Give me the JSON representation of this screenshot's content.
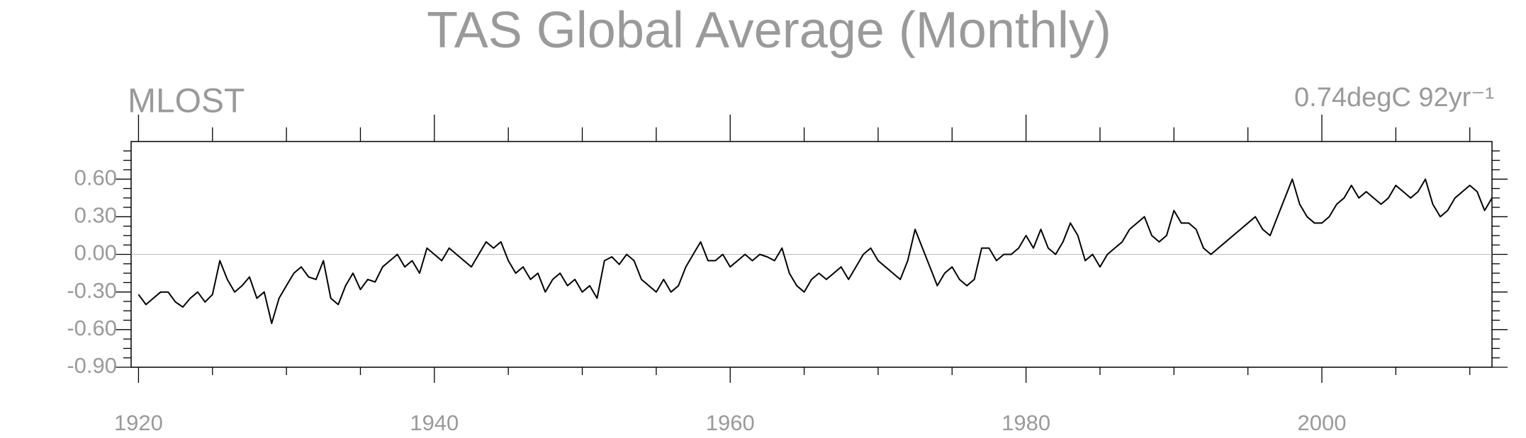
{
  "chart_data": {
    "type": "line",
    "title": "TAS Global Average (Monthly)",
    "subtitle_left": "MLOST",
    "subtitle_right": "0.74degC 92yr⁻¹",
    "x": [
      1920,
      1920.5,
      1921,
      1921.5,
      1922,
      1922.5,
      1923,
      1923.5,
      1924,
      1924.5,
      1925,
      1925.5,
      1926,
      1926.5,
      1927,
      1927.5,
      1928,
      1928.5,
      1929,
      1929.5,
      1930,
      1930.5,
      1931,
      1931.5,
      1932,
      1932.5,
      1933,
      1933.5,
      1934,
      1934.5,
      1935,
      1935.5,
      1936,
      1936.5,
      1937,
      1937.5,
      1938,
      1938.5,
      1939,
      1939.5,
      1940,
      1940.5,
      1941,
      1941.5,
      1942,
      1942.5,
      1943,
      1943.5,
      1944,
      1944.5,
      1945,
      1945.5,
      1946,
      1946.5,
      1947,
      1947.5,
      1948,
      1948.5,
      1949,
      1949.5,
      1950,
      1950.5,
      1951,
      1951.5,
      1952,
      1952.5,
      1953,
      1953.5,
      1954,
      1954.5,
      1955,
      1955.5,
      1956,
      1956.5,
      1957,
      1957.5,
      1958,
      1958.5,
      1959,
      1959.5,
      1960,
      1960.5,
      1961,
      1961.5,
      1962,
      1962.5,
      1963,
      1963.5,
      1964,
      1964.5,
      1965,
      1965.5,
      1966,
      1966.5,
      1967,
      1967.5,
      1968,
      1968.5,
      1969,
      1969.5,
      1970,
      1970.5,
      1971,
      1971.5,
      1972,
      1972.5,
      1973,
      1973.5,
      1974,
      1974.5,
      1975,
      1975.5,
      1976,
      1976.5,
      1977,
      1977.5,
      1978,
      1978.5,
      1979,
      1979.5,
      1980,
      1980.5,
      1981,
      1981.5,
      1982,
      1982.5,
      1983,
      1983.5,
      1984,
      1984.5,
      1985,
      1985.5,
      1986,
      1986.5,
      1987,
      1987.5,
      1988,
      1988.5,
      1989,
      1989.5,
      1990,
      1990.5,
      1991,
      1991.5,
      1992,
      1992.5,
      1993,
      1993.5,
      1994,
      1994.5,
      1995,
      1995.5,
      1996,
      1996.5,
      1997,
      1997.5,
      1998,
      1998.5,
      1999,
      1999.5,
      2000,
      2000.5,
      2001,
      2001.5,
      2002,
      2002.5,
      2003,
      2003.5,
      2004,
      2004.5,
      2005,
      2005.5,
      2006,
      2006.5,
      2007,
      2007.5,
      2008,
      2008.5,
      2009,
      2009.5,
      2010,
      2010.5,
      2011,
      2011.5
    ],
    "series": [
      {
        "color": "#000000",
        "values": [
          -0.32,
          -0.4,
          -0.35,
          -0.3,
          -0.3,
          -0.38,
          -0.42,
          -0.35,
          -0.3,
          -0.38,
          -0.32,
          -0.05,
          -0.2,
          -0.3,
          -0.25,
          -0.18,
          -0.35,
          -0.3,
          -0.55,
          -0.35,
          -0.25,
          -0.15,
          -0.1,
          -0.18,
          -0.2,
          -0.05,
          -0.35,
          -0.4,
          -0.25,
          -0.15,
          -0.28,
          -0.2,
          -0.22,
          -0.1,
          -0.05,
          0.0,
          -0.1,
          -0.05,
          -0.15,
          0.05,
          0.0,
          -0.05,
          0.05,
          0.0,
          -0.05,
          -0.1,
          0.0,
          0.1,
          0.05,
          0.1,
          -0.05,
          -0.15,
          -0.1,
          -0.2,
          -0.15,
          -0.3,
          -0.2,
          -0.15,
          -0.25,
          -0.2,
          -0.3,
          -0.25,
          -0.35,
          -0.05,
          -0.02,
          -0.08,
          0.0,
          -0.05,
          -0.2,
          -0.25,
          -0.3,
          -0.2,
          -0.3,
          -0.25,
          -0.1,
          0.0,
          0.1,
          -0.05,
          -0.05,
          0.0,
          -0.1,
          -0.05,
          0.0,
          -0.05,
          0.0,
          -0.02,
          -0.05,
          0.05,
          -0.15,
          -0.25,
          -0.3,
          -0.2,
          -0.15,
          -0.2,
          -0.15,
          -0.1,
          -0.2,
          -0.1,
          0.0,
          0.05,
          -0.05,
          -0.1,
          -0.15,
          -0.2,
          -0.05,
          0.2,
          0.05,
          -0.1,
          -0.25,
          -0.15,
          -0.1,
          -0.2,
          -0.25,
          -0.2,
          0.05,
          0.05,
          -0.05,
          0.0,
          0.0,
          0.05,
          0.15,
          0.05,
          0.2,
          0.05,
          0.0,
          0.1,
          0.25,
          0.15,
          -0.05,
          0.0,
          -0.1,
          0.0,
          0.05,
          0.1,
          0.2,
          0.25,
          0.3,
          0.15,
          0.1,
          0.15,
          0.35,
          0.25,
          0.25,
          0.2,
          0.05,
          0.0,
          0.05,
          0.1,
          0.15,
          0.2,
          0.25,
          0.3,
          0.2,
          0.15,
          0.3,
          0.45,
          0.6,
          0.4,
          0.3,
          0.25,
          0.25,
          0.3,
          0.4,
          0.45,
          0.55,
          0.45,
          0.5,
          0.45,
          0.4,
          0.45,
          0.55,
          0.5,
          0.45,
          0.5,
          0.6,
          0.4,
          0.3,
          0.35,
          0.45,
          0.5,
          0.55,
          0.5,
          0.35,
          0.45
        ]
      }
    ],
    "xlim": [
      1919.5,
      2011.5
    ],
    "ylim": [
      -0.9,
      0.9
    ],
    "xticks": [
      1920,
      1940,
      1960,
      1980,
      2000
    ],
    "xminorticks": [
      1925,
      1930,
      1935,
      1945,
      1950,
      1955,
      1965,
      1970,
      1975,
      1985,
      1990,
      1995,
      2005,
      2010
    ],
    "yticks": [
      {
        "value": -0.9,
        "label": "-0.90"
      },
      {
        "value": -0.6,
        "label": "-0.60"
      },
      {
        "value": -0.3,
        "label": "-0.30"
      },
      {
        "value": 0,
        "label": "0.00"
      },
      {
        "value": 0.3,
        "label": "0.30"
      },
      {
        "value": 0.6,
        "label": "0.60"
      }
    ],
    "yminorticks": [
      -0.825,
      -0.75,
      -0.675,
      -0.525,
      -0.45,
      -0.375,
      -0.225,
      -0.15,
      -0.075,
      0.075,
      0.15,
      0.225,
      0.375,
      0.45,
      0.525,
      0.675,
      0.75,
      0.825
    ],
    "zero_line": true
  }
}
